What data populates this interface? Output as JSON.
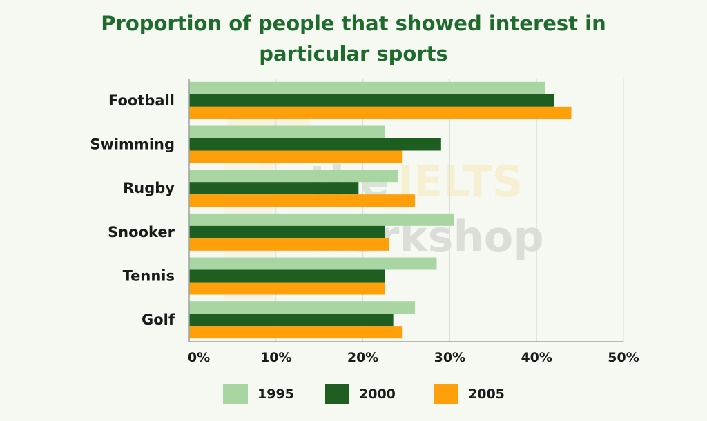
{
  "chart_data": {
    "type": "bar",
    "orientation": "horizontal",
    "title": "Proportion of people that showed interest in particular sports",
    "title_lines": [
      "Proportion of people that showed interest in",
      "particular sports"
    ],
    "categories": [
      "Football",
      "Swimming",
      "Rugby",
      "Snooker",
      "Tennis",
      "Golf"
    ],
    "series": [
      {
        "name": "1995",
        "color": "#a8d5a2",
        "values": [
          41,
          22.5,
          24,
          30.5,
          28.5,
          26
        ]
      },
      {
        "name": "2000",
        "color": "#1e5e21",
        "values": [
          42,
          29,
          19.5,
          22.5,
          22.5,
          23.5
        ]
      },
      {
        "name": "2005",
        "color": "#ff9f0a",
        "values": [
          44,
          24.5,
          26,
          23,
          22.5,
          24.5
        ]
      }
    ],
    "x_ticks": [
      "0%",
      "10%",
      "20%",
      "30%",
      "40%",
      "50%"
    ],
    "xlim": [
      0,
      50
    ],
    "xlabel": "",
    "ylabel": "",
    "grid": "vertical",
    "legend_position": "bottom"
  },
  "watermark": {
    "line1_a": "the",
    "line1_b": "IELTS",
    "line2": "workshop"
  }
}
